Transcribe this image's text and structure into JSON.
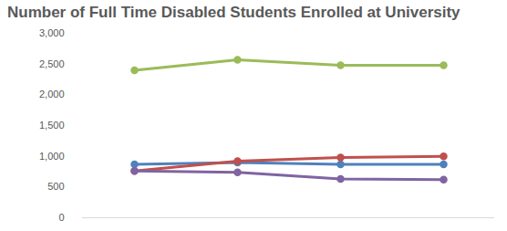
{
  "chart_data": {
    "type": "line",
    "title": "Number of Full Time Disabled Students Enrolled at University",
    "categories": [
      null,
      null,
      null,
      null
    ],
    "series": [
      {
        "color": "#9BBB59",
        "marker": "circle",
        "values": [
          2400,
          2570,
          2480,
          2480
        ]
      },
      {
        "color": "#4F81BD",
        "marker": "circle",
        "values": [
          870,
          900,
          870,
          870
        ]
      },
      {
        "color": "#C0504D",
        "marker": "circle",
        "values": [
          760,
          920,
          980,
          1000
        ]
      },
      {
        "color": "#8064A2",
        "marker": "circle",
        "values": [
          760,
          740,
          630,
          620
        ]
      }
    ],
    "ylim": [
      0,
      3000
    ],
    "yticks": [
      0,
      500,
      {
        "value": 1000,
        "label": "1,000"
      },
      {
        "value": 1500,
        "label": "1,500"
      },
      {
        "value": 2000,
        "label": "2,000"
      },
      {
        "value": 2500,
        "label": "2,500"
      },
      {
        "value": 3000,
        "label": "3,000"
      }
    ],
    "grid": false,
    "tick_labels": "y"
  }
}
